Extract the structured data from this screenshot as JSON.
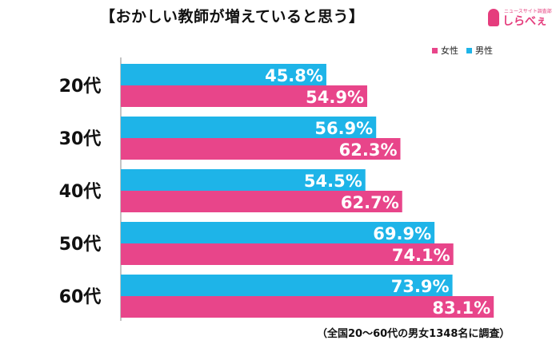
{
  "title": "【おかしい教師が増えていると思う】",
  "logo": {
    "brand": "しらべぇ",
    "tagline": "ニュースサイト調査部"
  },
  "footnote": "（全国20～60代の男女1348名に調査）",
  "colors": {
    "male": "#1eb4e8",
    "female": "#e8458a"
  },
  "chart_data": {
    "type": "bar",
    "orientation": "horizontal",
    "categories": [
      "20代",
      "30代",
      "40代",
      "50代",
      "60代"
    ],
    "series": [
      {
        "name": "男性",
        "values": [
          45.8,
          56.9,
          54.5,
          69.9,
          73.9
        ],
        "labels": [
          "45.8%",
          "56.9%",
          "54.5%",
          "69.9%",
          "73.9%"
        ]
      },
      {
        "name": "女性",
        "values": [
          54.9,
          62.3,
          62.7,
          74.1,
          83.1
        ],
        "labels": [
          "54.9%",
          "62.3%",
          "62.7%",
          "74.1%",
          "83.1%"
        ]
      }
    ],
    "legend": [
      "女性",
      "男性"
    ],
    "legend_position": "top-right",
    "unit": "%",
    "grid": false
  }
}
